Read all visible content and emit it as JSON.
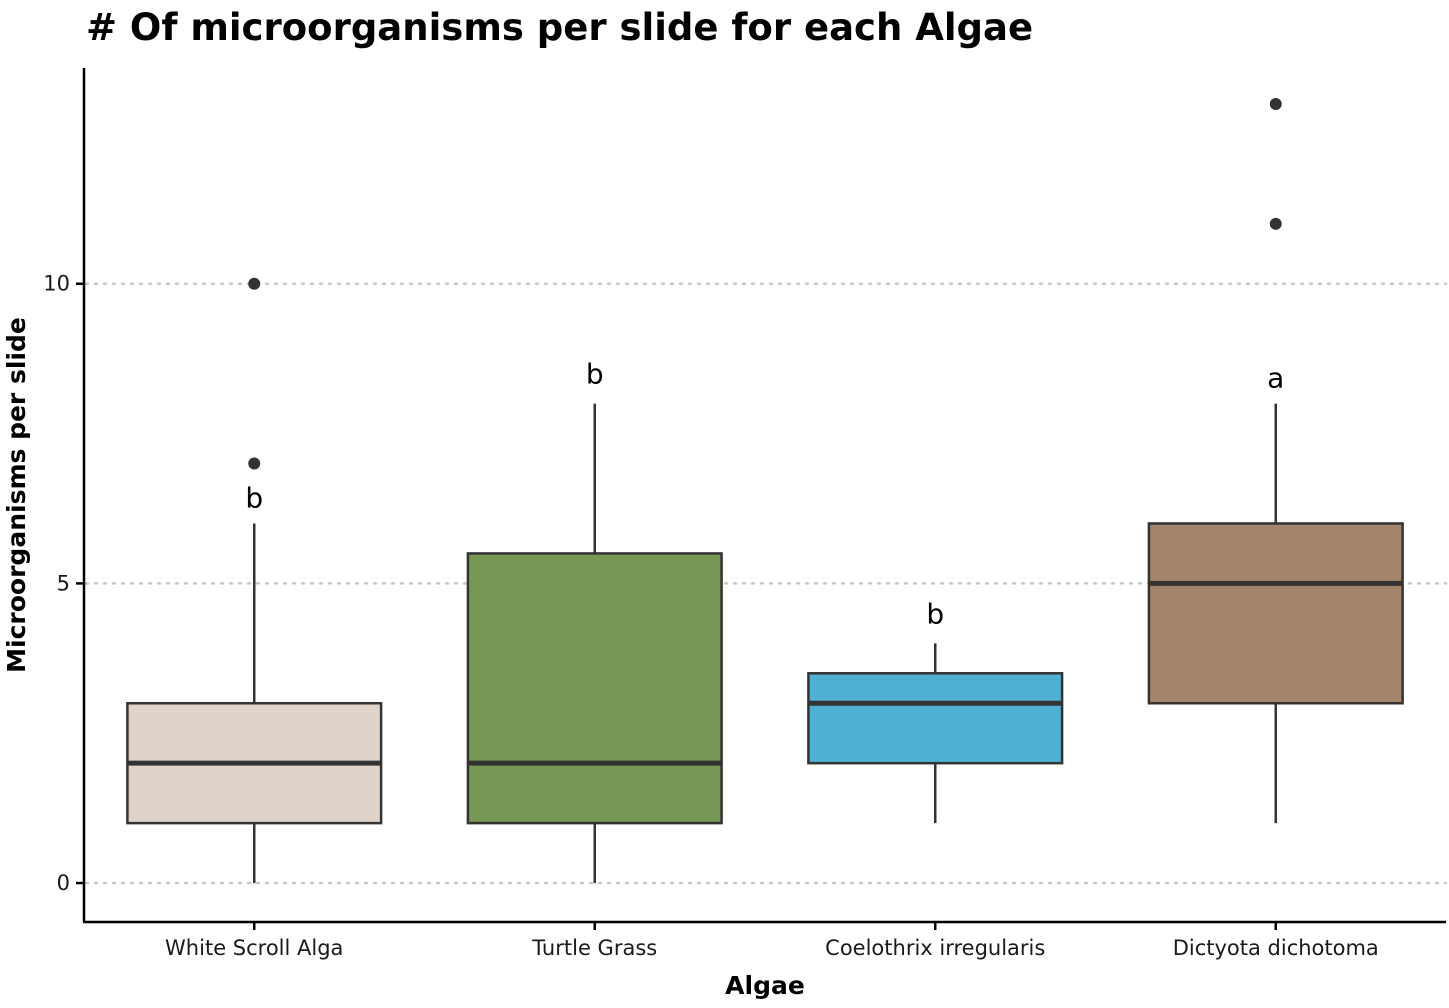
{
  "chart_data": {
    "type": "box",
    "title": "# Of microorganisms per slide for each Algae",
    "xlabel": "Algae",
    "ylabel": "Microorganisms per slide",
    "ylim": [
      -0.65,
      13.6
    ],
    "yticks": [
      0,
      5,
      10
    ],
    "grid": "horizontal dotted at y ticks",
    "legend": "none",
    "categories": [
      "White Scroll Alga",
      "Turtle Grass",
      "Coelothrix irregularis",
      "Dictyota dichotoma"
    ],
    "boxes": [
      {
        "category": "White Scroll Alga",
        "whisker_low": 0,
        "q1": 1,
        "median": 2,
        "q3": 3,
        "whisker_high": 6,
        "outliers": [
          7,
          10
        ],
        "group_label": "b",
        "color": "#e0d4ca"
      },
      {
        "category": "Turtle Grass",
        "whisker_low": 0,
        "q1": 1,
        "median": 2,
        "q3": 5.5,
        "whisker_high": 8,
        "outliers": [],
        "group_label": "b",
        "color": "#769854"
      },
      {
        "category": "Coelothrix irregularis",
        "whisker_low": 1,
        "q1": 2,
        "median": 3,
        "q3": 3.5,
        "whisker_high": 4,
        "outliers": [],
        "group_label": "b",
        "color": "#50b0d4"
      },
      {
        "category": "Dictyota dichotoma",
        "whisker_low": 1,
        "q1": 3,
        "median": 5,
        "q3": 6,
        "whisker_high": 8,
        "outliers": [
          11,
          13
        ],
        "group_label": "a",
        "color": "#a2856a"
      }
    ]
  }
}
